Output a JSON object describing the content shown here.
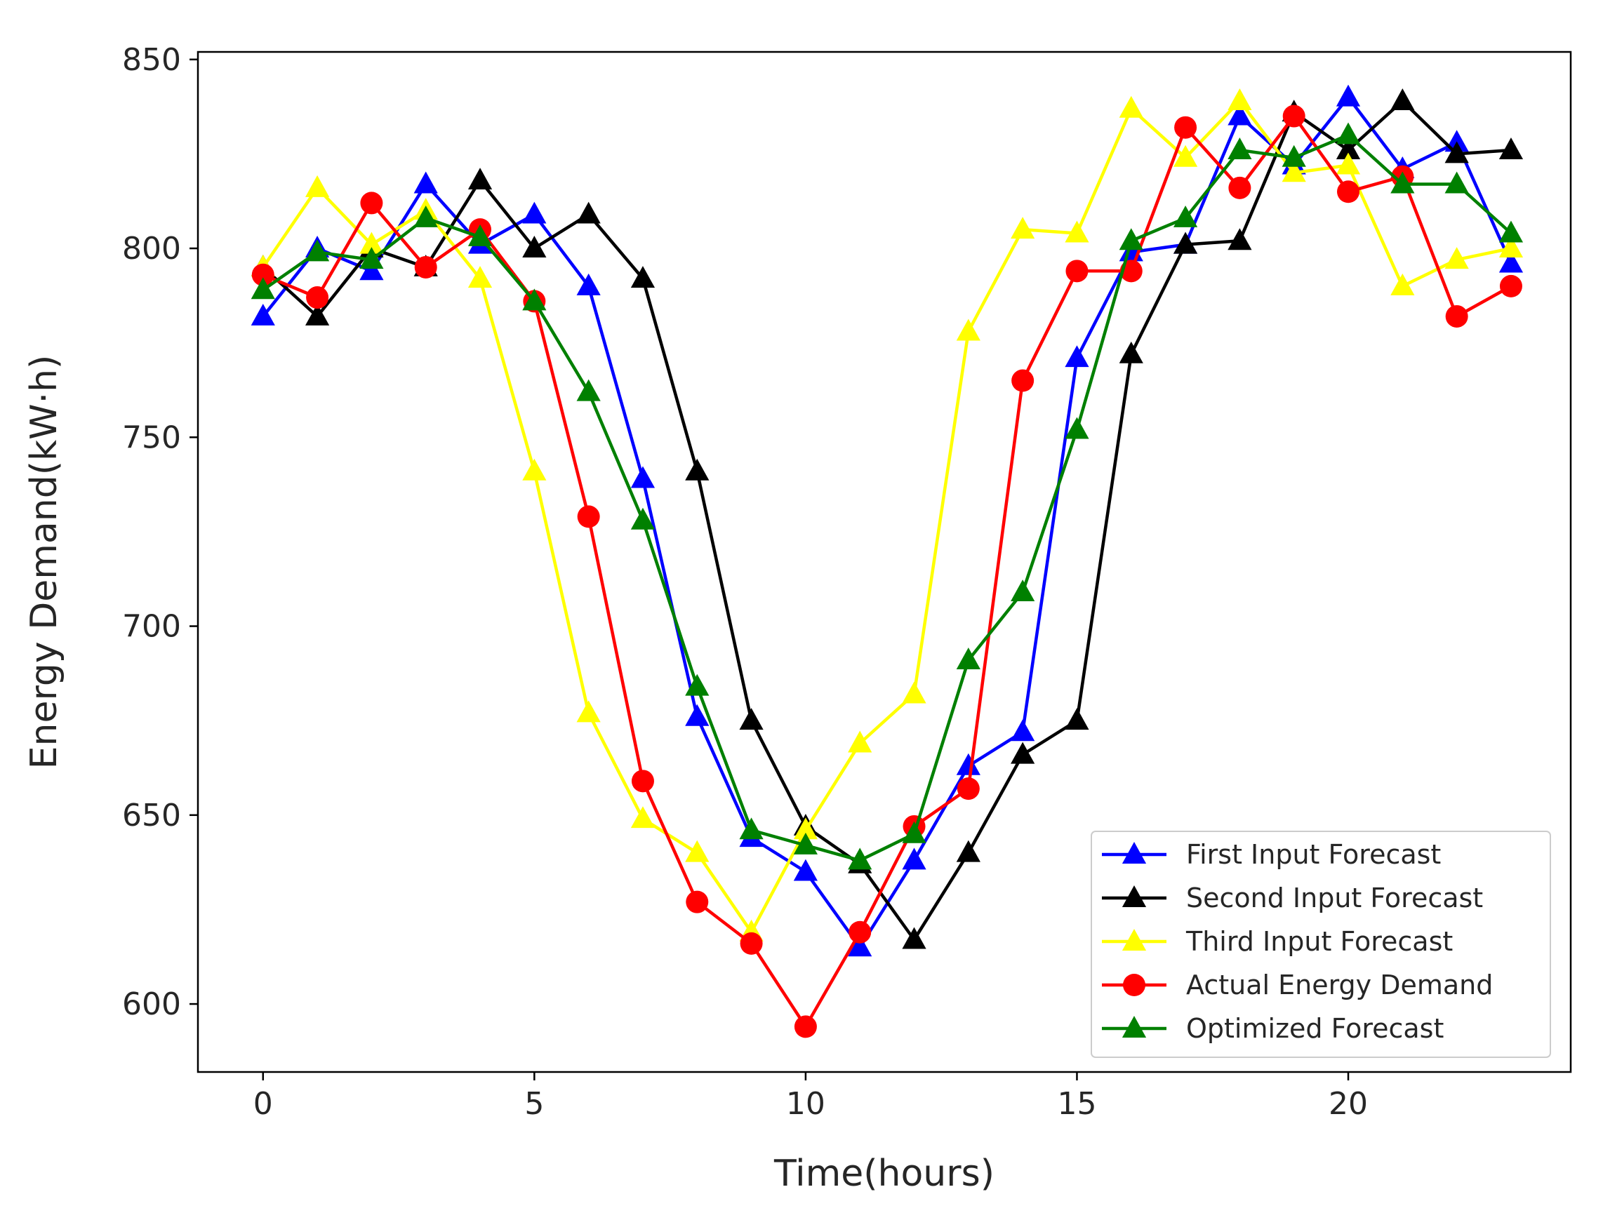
{
  "chart_data": {
    "type": "line",
    "title": "",
    "xlabel": "Time(hours)",
    "ylabel": "Energy Demand(kW·h)",
    "xlim": [
      -1.2,
      24.1
    ],
    "ylim": [
      582,
      852
    ],
    "x_ticks": [
      0,
      5,
      10,
      15,
      20
    ],
    "y_ticks": [
      600,
      650,
      700,
      750,
      800,
      850
    ],
    "legend_position": "lower-right",
    "x": [
      0,
      1,
      2,
      3,
      4,
      5,
      6,
      7,
      8,
      9,
      10,
      11,
      12,
      13,
      14,
      15,
      16,
      17,
      18,
      19,
      20,
      21,
      22,
      23
    ],
    "series": [
      {
        "name": "First Input Forecast",
        "color": "#0000ff",
        "marker": "triangle",
        "values": [
          782,
          800,
          794,
          817,
          801,
          809,
          790,
          739,
          676,
          644,
          635,
          615,
          638,
          663,
          672,
          771,
          799,
          801,
          835,
          822,
          840,
          821,
          828,
          796
        ]
      },
      {
        "name": "Second Input Forecast",
        "color": "#000000",
        "marker": "triangle",
        "values": [
          795,
          782,
          800,
          795,
          818,
          800,
          809,
          792,
          741,
          675,
          647,
          637,
          617,
          640,
          666,
          675,
          772,
          801,
          802,
          836,
          826,
          839,
          825,
          826
        ]
      },
      {
        "name": "Third Input Forecast",
        "color": "#ffff00",
        "marker": "triangle",
        "values": [
          795,
          816,
          801,
          810,
          792,
          741,
          677,
          649,
          640,
          619,
          646,
          669,
          682,
          778,
          805,
          804,
          837,
          824,
          839,
          820,
          822,
          790,
          797,
          800
        ]
      },
      {
        "name": "Actual Energy Demand",
        "color": "#ff0000",
        "marker": "circle",
        "values": [
          793,
          787,
          812,
          795,
          805,
          786,
          729,
          659,
          627,
          616,
          594,
          619,
          647,
          657,
          765,
          794,
          794,
          832,
          816,
          835,
          815,
          819,
          782,
          790
        ]
      },
      {
        "name": "Optimized Forecast",
        "color": "#008000",
        "marker": "triangle",
        "values": [
          789,
          799,
          797,
          808,
          803,
          786,
          762,
          728,
          684,
          646,
          642,
          638,
          645,
          691,
          709,
          752,
          802,
          808,
          826,
          824,
          830,
          817,
          817,
          804
        ]
      }
    ]
  }
}
